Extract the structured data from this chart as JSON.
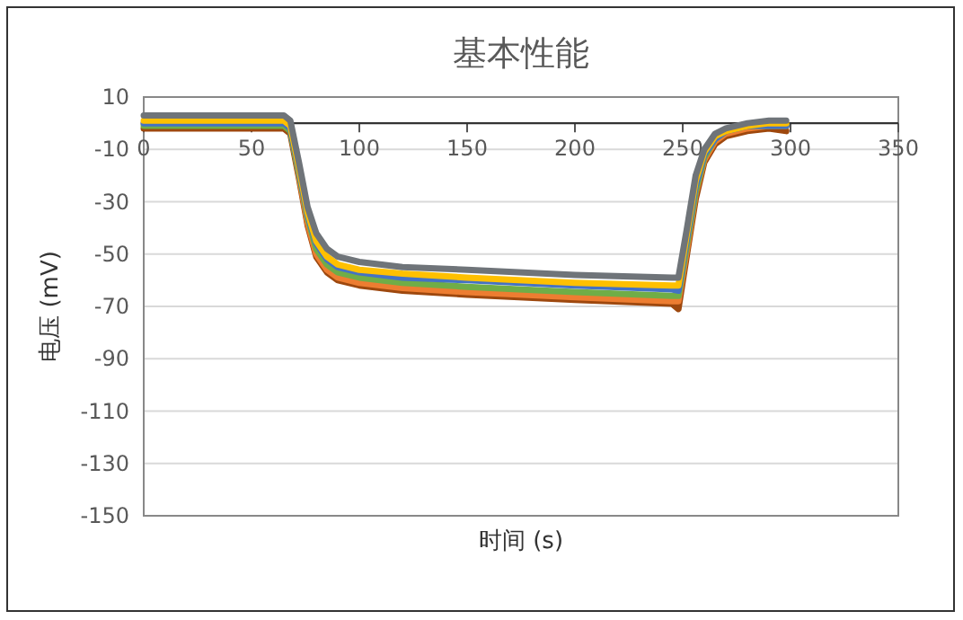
{
  "chart_data": {
    "type": "line",
    "title": "基本性能",
    "xlabel": "时间 (s)",
    "ylabel": "电压 (mV)",
    "x": [
      0,
      65,
      68,
      72,
      76,
      80,
      85,
      90,
      100,
      120,
      150,
      200,
      245,
      248,
      252,
      256,
      260,
      265,
      270,
      280,
      290,
      298
    ],
    "xlim": [
      0,
      350
    ],
    "xticks": [
      0,
      50,
      100,
      150,
      200,
      250,
      300,
      350
    ],
    "ylim": [
      -150,
      10
    ],
    "yticks": [
      -150,
      -130,
      -110,
      -90,
      -70,
      -50,
      -30,
      -10,
      10
    ],
    "grid": "y",
    "marker": "none",
    "line_style": "solid",
    "series": [
      {
        "color": "#9e480e",
        "values": [
          -2,
          -2,
          -4,
          -21,
          -39,
          -51,
          -57,
          -60,
          -62,
          -64,
          -65.5,
          -67.5,
          -69,
          -71,
          -50,
          -29,
          -15,
          -8,
          -5,
          -3,
          -2,
          -3
        ]
      },
      {
        "color": "#ed7d31",
        "values": [
          0,
          0,
          -2,
          -20,
          -38,
          -50,
          -56,
          -59,
          -61,
          -63,
          -64.5,
          -66.5,
          -68,
          -68,
          -48,
          -27,
          -14,
          -7,
          -4,
          -2,
          -1,
          -1
        ]
      },
      {
        "color": "#70ad47",
        "values": [
          -1,
          -1,
          -3,
          -19,
          -36,
          -48,
          -54,
          -57,
          -59,
          -61,
          -62.5,
          -64.5,
          -66,
          -66,
          -46,
          -26,
          -13,
          -6,
          -3,
          -1,
          -1,
          -1
        ]
      },
      {
        "color": "#4472c4",
        "values": [
          0,
          0,
          -2,
          -18,
          -35,
          -46,
          -52,
          -55,
          -57,
          -59,
          -60,
          -62,
          -63.5,
          -64,
          -44,
          -24,
          -12,
          -6,
          -3,
          -1,
          -1,
          -1
        ]
      },
      {
        "color": "#ffc000",
        "values": [
          1,
          1,
          -1,
          -17,
          -34,
          -45,
          -51,
          -54,
          -56,
          -57.5,
          -59,
          -61,
          -62,
          -62,
          -42,
          -22,
          -11,
          -5,
          -3,
          -1,
          0,
          0
        ]
      },
      {
        "color": "#6f7479",
        "values": [
          3,
          3,
          1,
          -15,
          -32,
          -42,
          -48,
          -51,
          -53,
          -55,
          -56,
          -58,
          -59,
          -59,
          -40,
          -20,
          -10,
          -4,
          -2,
          0,
          1,
          1
        ]
      }
    ]
  }
}
